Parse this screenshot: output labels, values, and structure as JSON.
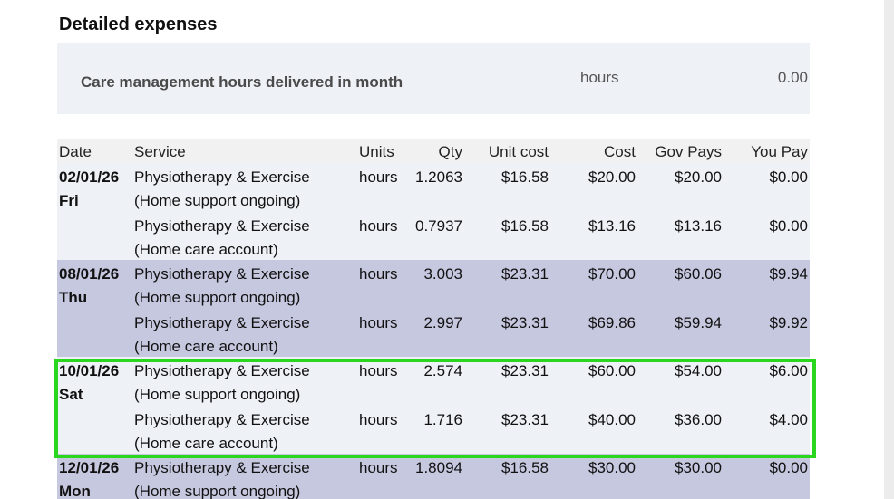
{
  "section_title": "Detailed expenses",
  "summary": {
    "label": "Care management hours delivered in month",
    "unit": "hours",
    "value": "0.00"
  },
  "table": {
    "headers": {
      "date": "Date",
      "service": "Service",
      "units": "Units",
      "qty": "Qty",
      "unit_cost": "Unit cost",
      "cost": "Cost",
      "gov_pays": "Gov Pays",
      "you_pay": "You Pay"
    },
    "groups": [
      {
        "date": "02/01/26",
        "day": "Fri",
        "shade": "light",
        "rows": [
          {
            "service_line1": "Physiotherapy & Exercise",
            "service_line2": "(Home support ongoing)",
            "units": "hours",
            "qty": "1.2063",
            "unit_cost": "$16.58",
            "cost": "$20.00",
            "gov_pays": "$20.00",
            "you_pay": "$0.00"
          },
          {
            "service_line1": "Physiotherapy & Exercise",
            "service_line2": "(Home care account)",
            "units": "hours",
            "qty": "0.7937",
            "unit_cost": "$16.58",
            "cost": "$13.16",
            "gov_pays": "$13.16",
            "you_pay": "$0.00"
          }
        ]
      },
      {
        "date": "08/01/26",
        "day": "Thu",
        "shade": "dark",
        "rows": [
          {
            "service_line1": "Physiotherapy & Exercise",
            "service_line2": "(Home support ongoing)",
            "units": "hours",
            "qty": "3.003",
            "unit_cost": "$23.31",
            "cost": "$70.00",
            "gov_pays": "$60.06",
            "you_pay": "$9.94"
          },
          {
            "service_line1": "Physiotherapy & Exercise",
            "service_line2": "(Home care account)",
            "units": "hours",
            "qty": "2.997",
            "unit_cost": "$23.31",
            "cost": "$69.86",
            "gov_pays": "$59.94",
            "you_pay": "$9.92"
          }
        ]
      },
      {
        "date": "10/01/26",
        "day": "Sat",
        "shade": "light",
        "rows": [
          {
            "service_line1": "Physiotherapy & Exercise",
            "service_line2": "(Home support ongoing)",
            "units": "hours",
            "qty": "2.574",
            "unit_cost": "$23.31",
            "cost": "$60.00",
            "gov_pays": "$54.00",
            "you_pay": "$6.00"
          },
          {
            "service_line1": "Physiotherapy & Exercise",
            "service_line2": "(Home care account)",
            "units": "hours",
            "qty": "1.716",
            "unit_cost": "$23.31",
            "cost": "$40.00",
            "gov_pays": "$36.00",
            "you_pay": "$4.00"
          }
        ]
      },
      {
        "date": "12/01/26",
        "day": "Mon",
        "shade": "dark",
        "rows": [
          {
            "service_line1": "Physiotherapy & Exercise",
            "service_line2": "(Home support ongoing)",
            "units": "hours",
            "qty": "1.8094",
            "unit_cost": "$16.58",
            "cost": "$30.00",
            "gov_pays": "$30.00",
            "you_pay": "$0.00"
          }
        ]
      }
    ]
  },
  "highlight_color": "#2bd61f"
}
